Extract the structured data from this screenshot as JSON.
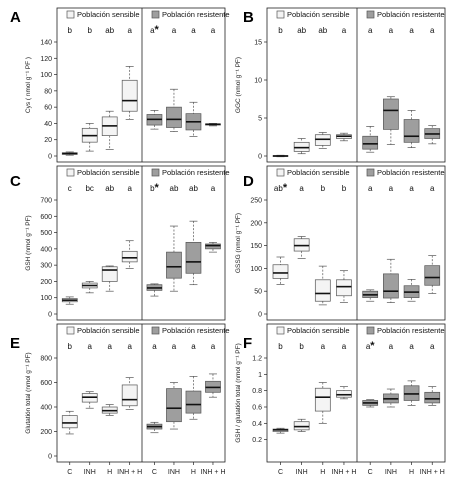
{
  "figure": {
    "panels": [
      "A",
      "B",
      "C",
      "D",
      "E",
      "F"
    ]
  },
  "colors": {
    "sensible_fill": "#f4f4f4",
    "resistente_fill": "#9e9e9e",
    "box_stroke": "#555555",
    "median": "#111111",
    "axis": "#222222"
  },
  "chart_data": [
    {
      "panel": "A",
      "type": "boxplot",
      "ylabel": "Cys ( nmol g⁻¹ PF )",
      "ylim": [
        0,
        140
      ],
      "yticks": [
        0,
        20,
        40,
        60,
        80,
        100,
        120,
        140
      ],
      "categories": [
        "C",
        "INH",
        "H",
        "INH + H"
      ],
      "legend": [
        "Población sensible",
        "Población resistente"
      ],
      "series": [
        {
          "name": "Población sensible",
          "letters": [
            "b",
            "b",
            "ab",
            "a"
          ],
          "boxes": [
            {
              "min": 1,
              "q1": 2,
              "median": 3,
              "q3": 4,
              "max": 5
            },
            {
              "min": 6,
              "q1": 17,
              "median": 25,
              "q3": 34,
              "max": 40
            },
            {
              "min": 8,
              "q1": 25,
              "median": 37,
              "q3": 48,
              "max": 55
            },
            {
              "min": 45,
              "q1": 55,
              "median": 68,
              "q3": 93,
              "max": 110
            }
          ]
        },
        {
          "name": "Población resistente",
          "letters": [
            "a*",
            "a",
            "a",
            "a"
          ],
          "boxes": [
            {
              "min": 33,
              "q1": 38,
              "median": 45,
              "q3": 51,
              "max": 56
            },
            {
              "min": 30,
              "q1": 35,
              "median": 45,
              "q3": 60,
              "max": 82
            },
            {
              "min": 24,
              "q1": 32,
              "median": 42,
              "q3": 52,
              "max": 66
            },
            {
              "min": 37,
              "q1": 38,
              "median": 39,
              "q3": 39.5,
              "max": 40
            }
          ]
        }
      ]
    },
    {
      "panel": "B",
      "type": "boxplot",
      "ylabel": "GGC (nmol g⁻¹ PF)",
      "ylim": [
        0,
        15
      ],
      "yticks": [
        0,
        5,
        10,
        15
      ],
      "categories": [
        "C",
        "INH",
        "H",
        "INH + H"
      ],
      "legend": [
        "Población sensible",
        "Población resistente"
      ],
      "series": [
        {
          "name": "Población sensible",
          "letters": [
            "b",
            "ab",
            "ab",
            "a"
          ],
          "boxes": [
            {
              "min": -0.1,
              "q1": -0.05,
              "median": 0,
              "q3": 0.05,
              "max": 0.1
            },
            {
              "min": 0.3,
              "q1": 0.6,
              "median": 1.1,
              "q3": 1.8,
              "max": 2.3
            },
            {
              "min": 1.0,
              "q1": 1.4,
              "median": 2.2,
              "q3": 2.8,
              "max": 3.1
            },
            {
              "min": 2.0,
              "q1": 2.3,
              "median": 2.6,
              "q3": 2.8,
              "max": 3.0
            }
          ]
        },
        {
          "name": "Población resistente",
          "letters": [
            "a",
            "a",
            "a",
            "a"
          ],
          "boxes": [
            {
              "min": 0.5,
              "q1": 0.9,
              "median": 1.6,
              "q3": 2.6,
              "max": 3.9
            },
            {
              "min": 1.5,
              "q1": 3.5,
              "median": 6.0,
              "q3": 7.5,
              "max": 7.8
            },
            {
              "min": 1.1,
              "q1": 1.8,
              "median": 2.6,
              "q3": 4.8,
              "max": 6.0
            },
            {
              "min": 1.6,
              "q1": 2.3,
              "median": 2.9,
              "q3": 3.6,
              "max": 4.0
            }
          ]
        }
      ]
    },
    {
      "panel": "C",
      "type": "boxplot",
      "ylabel": "GSH (nmol g⁻¹ PF)",
      "ylim": [
        0,
        700
      ],
      "yticks": [
        0,
        100,
        200,
        300,
        400,
        500,
        600,
        700
      ],
      "categories": [
        "C",
        "INH",
        "H",
        "INH + H"
      ],
      "legend": [
        "Población sensible",
        "Población resistente"
      ],
      "series": [
        {
          "name": "Población sensible",
          "letters": [
            "c",
            "bc",
            "ab",
            "a"
          ],
          "boxes": [
            {
              "min": 60,
              "q1": 75,
              "median": 85,
              "q3": 95,
              "max": 105
            },
            {
              "min": 130,
              "q1": 160,
              "median": 175,
              "q3": 190,
              "max": 200
            },
            {
              "min": 140,
              "q1": 200,
              "median": 270,
              "q3": 290,
              "max": 295
            },
            {
              "min": 280,
              "q1": 320,
              "median": 345,
              "q3": 385,
              "max": 450
            }
          ]
        },
        {
          "name": "Población resistente",
          "letters": [
            "b*",
            "ab",
            "ab",
            "a"
          ],
          "boxes": [
            {
              "min": 110,
              "q1": 145,
              "median": 160,
              "q3": 180,
              "max": 185
            },
            {
              "min": 140,
              "q1": 220,
              "median": 290,
              "q3": 380,
              "max": 540
            },
            {
              "min": 180,
              "q1": 250,
              "median": 320,
              "q3": 440,
              "max": 570
            },
            {
              "min": 380,
              "q1": 400,
              "median": 420,
              "q3": 430,
              "max": 440
            }
          ]
        }
      ]
    },
    {
      "panel": "D",
      "type": "boxplot",
      "ylabel": "GSSG (nmol g⁻¹ PF)",
      "ylim": [
        0,
        250
      ],
      "yticks": [
        0,
        50,
        100,
        150,
        200,
        250
      ],
      "categories": [
        "C",
        "INH",
        "H",
        "INH + H"
      ],
      "legend": [
        "Población sensible",
        "Población resistente"
      ],
      "series": [
        {
          "name": "Población sensible",
          "letters": [
            "ab*",
            "a",
            "b",
            "b"
          ],
          "boxes": [
            {
              "min": 65,
              "q1": 78,
              "median": 90,
              "q3": 108,
              "max": 125
            },
            {
              "min": 122,
              "q1": 138,
              "median": 150,
              "q3": 165,
              "max": 170
            },
            {
              "min": 20,
              "q1": 28,
              "median": 45,
              "q3": 75,
              "max": 105
            },
            {
              "min": 25,
              "q1": 40,
              "median": 60,
              "q3": 75,
              "max": 95
            }
          ]
        },
        {
          "name": "Población resistente",
          "letters": [
            "a",
            "a",
            "a",
            "a"
          ],
          "boxes": [
            {
              "min": 28,
              "q1": 36,
              "median": 42,
              "q3": 50,
              "max": 53
            },
            {
              "min": 25,
              "q1": 35,
              "median": 50,
              "q3": 88,
              "max": 120
            },
            {
              "min": 28,
              "q1": 36,
              "median": 48,
              "q3": 62,
              "max": 76
            },
            {
              "min": 45,
              "q1": 63,
              "median": 80,
              "q3": 106,
              "max": 128
            }
          ]
        }
      ]
    },
    {
      "panel": "E",
      "type": "boxplot",
      "ylabel": "Glutatión total (nmol g⁻¹ PF)",
      "ylim": [
        0,
        800
      ],
      "yticks": [
        0,
        200,
        400,
        600,
        800
      ],
      "categories": [
        "C",
        "INH",
        "H",
        "INH + H"
      ],
      "legend": [
        "Población sensible",
        "Población resistente"
      ],
      "series": [
        {
          "name": "Población sensible",
          "letters": [
            "b",
            "a",
            "a",
            "a"
          ],
          "boxes": [
            {
              "min": 180,
              "q1": 230,
              "median": 270,
              "q3": 330,
              "max": 365
            },
            {
              "min": 390,
              "q1": 440,
              "median": 480,
              "q3": 510,
              "max": 525
            },
            {
              "min": 330,
              "q1": 350,
              "median": 370,
              "q3": 400,
              "max": 420
            },
            {
              "min": 380,
              "q1": 410,
              "median": 460,
              "q3": 580,
              "max": 640
            }
          ]
        },
        {
          "name": "Población resistente",
          "letters": [
            "a",
            "a",
            "a",
            "a"
          ],
          "boxes": [
            {
              "min": 190,
              "q1": 220,
              "median": 240,
              "q3": 260,
              "max": 275
            },
            {
              "min": 220,
              "q1": 280,
              "median": 390,
              "q3": 550,
              "max": 600
            },
            {
              "min": 300,
              "q1": 350,
              "median": 420,
              "q3": 530,
              "max": 650
            },
            {
              "min": 480,
              "q1": 520,
              "median": 560,
              "q3": 610,
              "max": 670
            }
          ]
        }
      ]
    },
    {
      "panel": "F",
      "type": "boxplot",
      "ylabel": "GSH / glutatión total (nmol g⁻¹ PF)",
      "ylim": [
        0,
        1.2
      ],
      "yticks": [
        0.2,
        0.4,
        0.6,
        0.8,
        1.0,
        1.2
      ],
      "categories": [
        "C",
        "INH",
        "H",
        "INH + H"
      ],
      "legend": [
        "Población sensible",
        "Población resistente"
      ],
      "series": [
        {
          "name": "Población sensible",
          "letters": [
            "b",
            "b",
            "a",
            "a"
          ],
          "boxes": [
            {
              "min": 0.28,
              "q1": 0.3,
              "median": 0.32,
              "q3": 0.33,
              "max": 0.34
            },
            {
              "min": 0.3,
              "q1": 0.32,
              "median": 0.36,
              "q3": 0.42,
              "max": 0.45
            },
            {
              "min": 0.4,
              "q1": 0.55,
              "median": 0.72,
              "q3": 0.83,
              "max": 0.9
            },
            {
              "min": 0.7,
              "q1": 0.72,
              "median": 0.75,
              "q3": 0.8,
              "max": 0.85
            }
          ]
        },
        {
          "name": "Población resistente",
          "letters": [
            "a*",
            "a",
            "a",
            "a"
          ],
          "boxes": [
            {
              "min": 0.6,
              "q1": 0.62,
              "median": 0.65,
              "q3": 0.68,
              "max": 0.69
            },
            {
              "min": 0.6,
              "q1": 0.65,
              "median": 0.7,
              "q3": 0.76,
              "max": 0.82
            },
            {
              "min": 0.62,
              "q1": 0.68,
              "median": 0.76,
              "q3": 0.86,
              "max": 0.92
            },
            {
              "min": 0.62,
              "q1": 0.65,
              "median": 0.7,
              "q3": 0.78,
              "max": 0.85
            }
          ]
        }
      ]
    }
  ]
}
